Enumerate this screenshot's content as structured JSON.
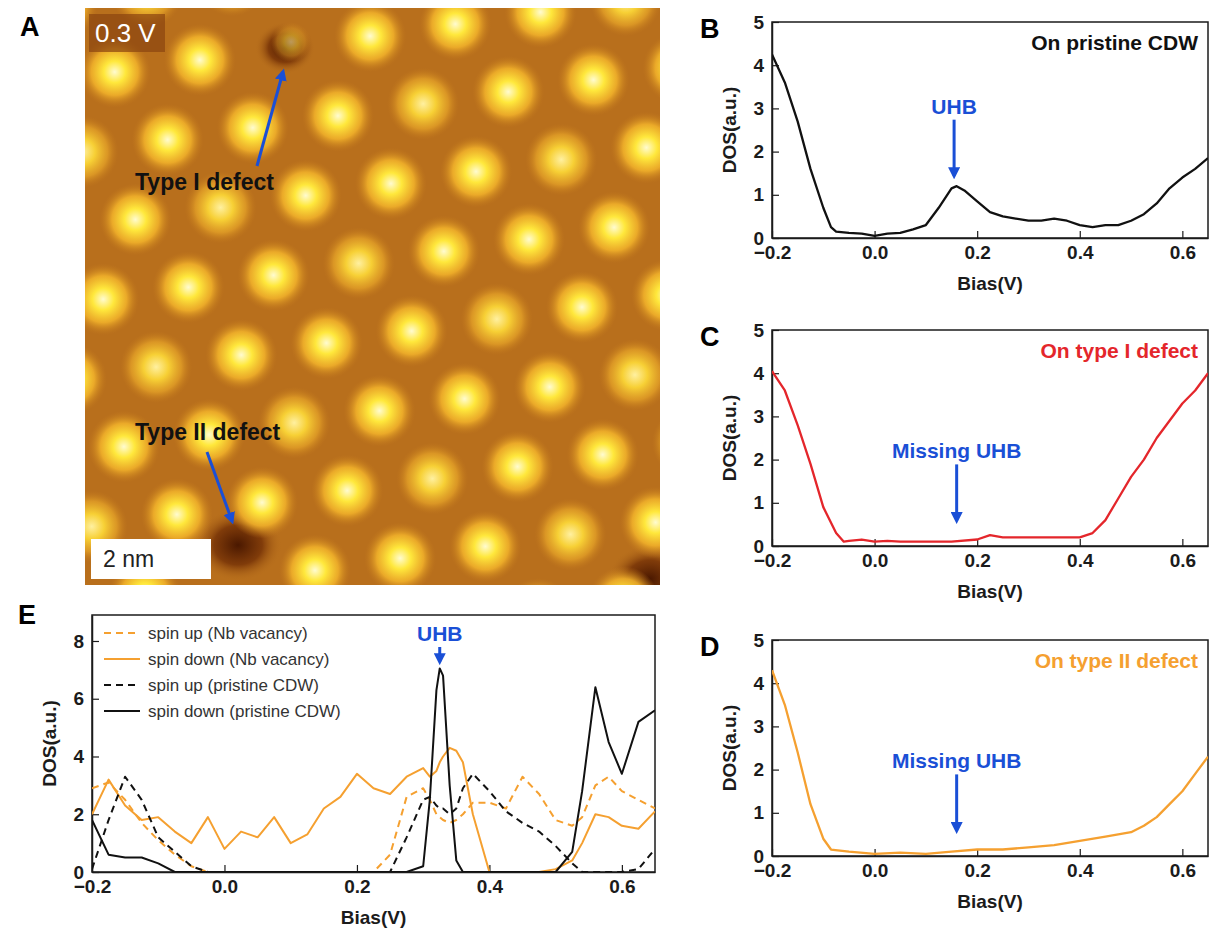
{
  "chart_data": [
    {
      "type": "image",
      "panel": "A",
      "title": "0.3 V",
      "annotations": [
        {
          "text": "Type I defect"
        },
        {
          "text": "Type II defect"
        }
      ],
      "scale_bar": "2 nm"
    },
    {
      "type": "line",
      "panel": "B",
      "title": "On pristine CDW",
      "x_label": "Bias(V)",
      "y_label": "DOS(a.u.)",
      "xlim": [
        -0.2,
        0.65
      ],
      "ylim": [
        0,
        5
      ],
      "xticks": [
        {
          "value": -0.2,
          "label": "−0.2"
        },
        {
          "value": 0,
          "label": "0.0"
        },
        0.2,
        0.4,
        0.6
      ],
      "yticks": [
        0,
        1,
        2,
        3,
        4,
        5
      ],
      "color": "#111111",
      "x": [
        -0.2,
        -0.175,
        -0.15,
        -0.125,
        -0.1,
        -0.085,
        -0.075,
        -0.05,
        -0.025,
        0,
        0.025,
        0.05,
        0.075,
        0.1,
        0.125,
        0.15,
        0.16,
        0.175,
        0.2,
        0.225,
        0.25,
        0.275,
        0.3,
        0.325,
        0.35,
        0.375,
        0.4,
        0.425,
        0.45,
        0.475,
        0.5,
        0.525,
        0.55,
        0.575,
        0.6,
        0.625,
        0.65
      ],
      "values": [
        4.25,
        3.6,
        2.7,
        1.6,
        0.7,
        0.25,
        0.15,
        0.12,
        0.1,
        0.05,
        0.1,
        0.12,
        0.2,
        0.3,
        0.7,
        1.15,
        1.2,
        1.1,
        0.85,
        0.6,
        0.5,
        0.45,
        0.4,
        0.4,
        0.45,
        0.4,
        0.3,
        0.25,
        0.3,
        0.3,
        0.4,
        0.55,
        0.8,
        1.15,
        1.4,
        1.6,
        1.85
      ],
      "annotations": [
        {
          "text": "UHB",
          "x": 0.155,
          "y": 1.35
        }
      ]
    },
    {
      "type": "line",
      "panel": "C",
      "title": "On type I defect",
      "x_label": "Bias(V)",
      "y_label": "DOS(a.u.)",
      "xlim": [
        -0.2,
        0.65
      ],
      "ylim": [
        0,
        5
      ],
      "xticks": [
        {
          "value": -0.2,
          "label": "−0.2"
        },
        {
          "value": 0,
          "label": "0.0"
        },
        0.2,
        0.4,
        0.6
      ],
      "yticks": [
        0,
        1,
        2,
        3,
        4,
        5
      ],
      "color": "#e4262b",
      "x": [
        -0.2,
        -0.175,
        -0.15,
        -0.125,
        -0.1,
        -0.075,
        -0.06,
        -0.05,
        -0.025,
        0,
        0.025,
        0.05,
        0.1,
        0.15,
        0.2,
        0.225,
        0.25,
        0.3,
        0.35,
        0.4,
        0.425,
        0.45,
        0.475,
        0.5,
        0.525,
        0.55,
        0.575,
        0.6,
        0.625,
        0.65
      ],
      "values": [
        4.05,
        3.6,
        2.8,
        1.9,
        0.9,
        0.3,
        0.1,
        0.12,
        0.15,
        0.1,
        0.12,
        0.1,
        0.1,
        0.1,
        0.15,
        0.25,
        0.2,
        0.2,
        0.2,
        0.2,
        0.3,
        0.6,
        1.1,
        1.6,
        2.0,
        2.5,
        2.9,
        3.3,
        3.6,
        4.0
      ],
      "annotations": [
        {
          "text": "Missing UHB",
          "x": 0.16,
          "y": 0.5
        }
      ]
    },
    {
      "type": "line",
      "panel": "D",
      "title": "On type II defect",
      "x_label": "Bias(V)",
      "y_label": "DOS(a.u.)",
      "xlim": [
        -0.2,
        0.65
      ],
      "ylim": [
        0,
        5
      ],
      "xticks": [
        {
          "value": -0.2,
          "label": "−0.2"
        },
        {
          "value": 0,
          "label": "0.0"
        },
        0.2,
        0.4,
        0.6
      ],
      "yticks": [
        0,
        1,
        2,
        3,
        4,
        5
      ],
      "color": "#f5a030",
      "x": [
        -0.2,
        -0.175,
        -0.15,
        -0.125,
        -0.1,
        -0.085,
        -0.05,
        0,
        0.05,
        0.1,
        0.15,
        0.2,
        0.25,
        0.3,
        0.35,
        0.4,
        0.45,
        0.5,
        0.525,
        0.55,
        0.575,
        0.6,
        0.625,
        0.65
      ],
      "values": [
        4.3,
        3.5,
        2.4,
        1.2,
        0.4,
        0.15,
        0.1,
        0.05,
        0.08,
        0.05,
        0.1,
        0.15,
        0.15,
        0.2,
        0.25,
        0.35,
        0.45,
        0.55,
        0.7,
        0.9,
        1.2,
        1.5,
        1.9,
        2.3
      ],
      "annotations": [
        {
          "text": "Missing UHB",
          "x": 0.16,
          "y": 0.5
        }
      ]
    },
    {
      "type": "line",
      "panel": "E",
      "x_label": "Bias(V)",
      "y_label": "DOS(a.u.)",
      "xlim": [
        -0.2,
        0.65
      ],
      "ylim": [
        0,
        8.9
      ],
      "xticks": [
        {
          "value": -0.2,
          "label": "−0.2"
        },
        {
          "value": 0,
          "label": "0.0"
        },
        0.2,
        0.4,
        0.6
      ],
      "yticks": [
        0,
        2,
        4,
        6,
        8
      ],
      "legend": "top-left",
      "x": [
        -0.2,
        -0.175,
        -0.15,
        -0.125,
        -0.1,
        -0.075,
        -0.05,
        -0.025,
        0,
        0.025,
        0.05,
        0.075,
        0.1,
        0.125,
        0.15,
        0.175,
        0.2,
        0.225,
        0.25,
        0.275,
        0.3,
        0.31,
        0.32,
        0.325,
        0.33,
        0.34,
        0.35,
        0.36,
        0.375,
        0.4,
        0.425,
        0.45,
        0.475,
        0.5,
        0.525,
        0.54,
        0.56,
        0.58,
        0.6,
        0.625,
        0.65
      ],
      "series": [
        {
          "name": "spin up (Nb vacancy)",
          "color": "#f5a030",
          "line_style": "dashed",
          "values": [
            2.9,
            3.1,
            2.5,
            1.7,
            1.1,
            0.6,
            0.2,
            0,
            0,
            0,
            0,
            0,
            0,
            0,
            0,
            0,
            0,
            0,
            0.6,
            2.6,
            2.9,
            2.5,
            2.0,
            1.9,
            1.8,
            1.7,
            1.8,
            2.0,
            2.4,
            2.4,
            2.2,
            3.3,
            2.7,
            1.8,
            1.6,
            1.9,
            3.0,
            3.3,
            2.8,
            2.5,
            2.2
          ]
        },
        {
          "name": "spin down (Nb vacancy)",
          "color": "#f5a030",
          "line_style": "solid",
          "values": [
            2.0,
            3.2,
            2.3,
            1.8,
            1.9,
            1.4,
            1.0,
            1.9,
            0.8,
            1.4,
            1.2,
            1.9,
            1.0,
            1.3,
            2.2,
            2.6,
            3.4,
            2.9,
            2.7,
            3.3,
            3.6,
            3.3,
            3.5,
            3.8,
            4.0,
            4.3,
            4.2,
            3.8,
            2.0,
            0,
            0,
            0,
            0,
            0.1,
            0.4,
            1.0,
            2.0,
            1.9,
            1.6,
            1.5,
            2.1
          ]
        },
        {
          "name": "spin up (pristine CDW)",
          "color": "#111111",
          "line_style": "dashed",
          "values": [
            0.1,
            1.8,
            3.3,
            2.5,
            1.2,
            0.7,
            0.2,
            0,
            0,
            0,
            0,
            0,
            0,
            0,
            0,
            0,
            0,
            0,
            0,
            1.2,
            2.5,
            2.6,
            2.3,
            2.2,
            2.2,
            2.0,
            2.2,
            2.9,
            3.4,
            2.8,
            2.1,
            1.7,
            1.4,
            0.9,
            0.3,
            0,
            0,
            0,
            0,
            0.1,
            0.8
          ]
        },
        {
          "name": "spin down (pristine CDW)",
          "color": "#111111",
          "line_style": "solid",
          "values": [
            1.8,
            0.6,
            0.5,
            0.5,
            0.3,
            0,
            0,
            0,
            0,
            0,
            0,
            0,
            0,
            0,
            0,
            0,
            0,
            0,
            0,
            0,
            0.2,
            2.5,
            6.3,
            7.05,
            6.8,
            3.0,
            0.4,
            0,
            0,
            0,
            0,
            0,
            0,
            0,
            0.7,
            2.8,
            6.4,
            4.5,
            3.4,
            5.2,
            5.6
          ]
        }
      ],
      "annotations": [
        {
          "text": "UHB",
          "x": 0.325,
          "y": 7.15
        }
      ]
    }
  ]
}
